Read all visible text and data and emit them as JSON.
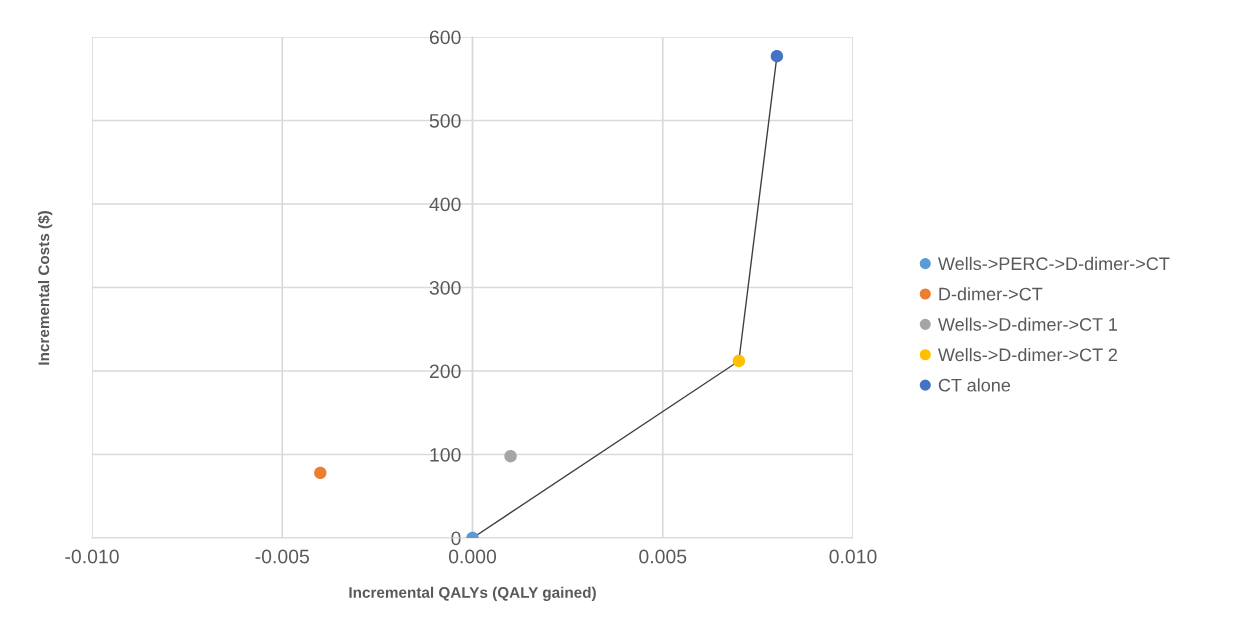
{
  "chart_data": {
    "type": "scatter",
    "xlabel": "Incremental QALYs (QALY gained)",
    "ylabel": "Incremental Costs ($)",
    "xlim": [
      -0.01,
      0.01
    ],
    "xticks": [
      {
        "value": -0.01,
        "label": "-0.010"
      },
      {
        "value": -0.005,
        "label": "-0.005"
      },
      {
        "value": 0,
        "label": "0.000"
      },
      {
        "value": 0.005,
        "label": "0.005"
      },
      {
        "value": 0.01,
        "label": "0.010"
      }
    ],
    "ylim": [
      0,
      600
    ],
    "yticks": [
      0,
      100,
      200,
      300,
      400,
      500,
      600
    ],
    "grid": true,
    "legend": "right",
    "series": [
      {
        "type": "line",
        "color": "#404040",
        "x": [
          0,
          0.007,
          0.008
        ],
        "values": [
          0,
          212,
          577
        ],
        "line_style": "solid"
      },
      {
        "name": "Wells->PERC->D-dimer->CT",
        "color": "#5b9bd5",
        "x": [
          0
        ],
        "values": [
          0
        ],
        "marker": "circle"
      },
      {
        "name": "D-dimer->CT",
        "color": "#ed7d31",
        "x": [
          -0.004
        ],
        "values": [
          78
        ],
        "marker": "circle"
      },
      {
        "name": "Wells->D-dimer->CT 1",
        "color": "#a5a5a5",
        "x": [
          0.001
        ],
        "values": [
          98
        ],
        "marker": "circle"
      },
      {
        "name": "Wells->D-dimer->CT 2",
        "color": "#ffc000",
        "x": [
          0.007
        ],
        "values": [
          212
        ],
        "marker": "circle"
      },
      {
        "name": "CT alone",
        "color": "#4472c4",
        "x": [
          0.008
        ],
        "values": [
          577
        ],
        "marker": "circle"
      }
    ]
  }
}
